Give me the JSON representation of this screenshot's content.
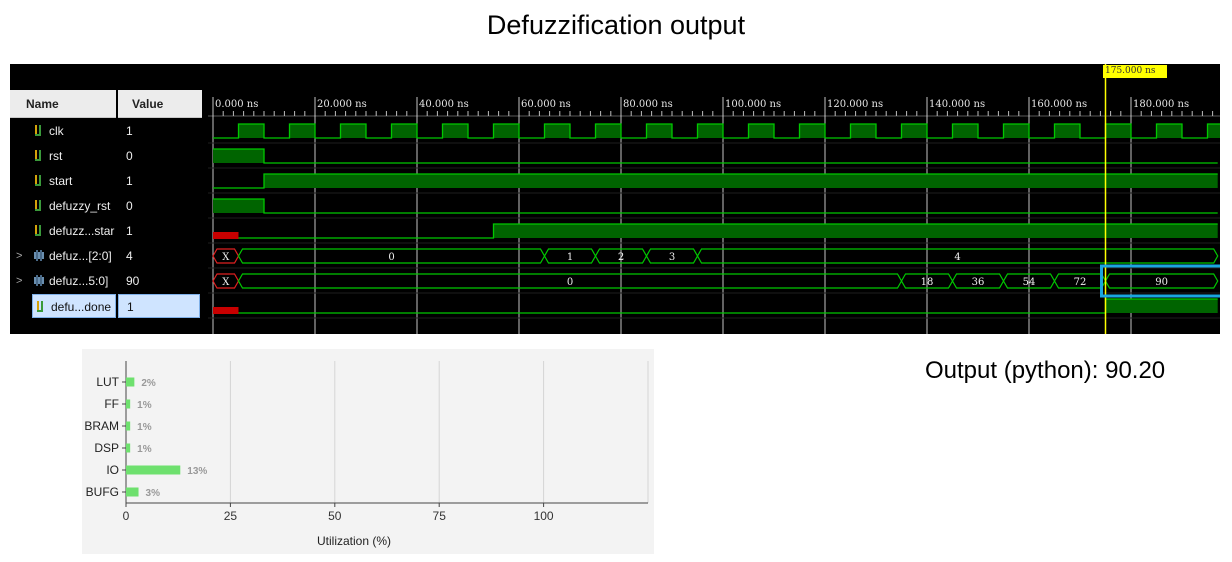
{
  "title": "Defuzzification output",
  "waveform": {
    "headers": {
      "name": "Name",
      "value": "Value"
    },
    "cursor_label": "175.000 ns",
    "time_ticks": [
      "0.000 ns",
      "20.000 ns",
      "40.000 ns",
      "60.000 ns",
      "80.000 ns",
      "100.000 ns",
      "120.000 ns",
      "140.000 ns",
      "160.000 ns",
      "180.000 ns"
    ],
    "signals": [
      {
        "name": "clk",
        "value": "1",
        "kind": "bit",
        "expandable": false
      },
      {
        "name": "rst",
        "value": "0",
        "kind": "bit",
        "expandable": false
      },
      {
        "name": "start",
        "value": "1",
        "kind": "bit",
        "expandable": false
      },
      {
        "name": "defuzzy_rst",
        "value": "0",
        "kind": "bit",
        "expandable": false
      },
      {
        "name": "defuzz...star",
        "value": "1",
        "kind": "bit",
        "expandable": false
      },
      {
        "name": "defuz...[2:0]",
        "value": "4",
        "kind": "bus",
        "expandable": true
      },
      {
        "name": "defuz...5:0]",
        "value": "90",
        "kind": "bus",
        "expandable": true
      },
      {
        "name": "defu...done",
        "value": "1",
        "kind": "bit",
        "expandable": false,
        "selected": true
      }
    ],
    "bus_labels": {
      "counter": [
        "X",
        "0",
        "1",
        "2",
        "3",
        "4"
      ],
      "output": [
        "X",
        "0",
        "18",
        "36",
        "54",
        "72",
        "90"
      ]
    },
    "expander_glyph": ">",
    "highlight_color": "#1aa7e0",
    "wave_color": "#00c800",
    "cursor_color": "#ffff00"
  },
  "output_text": "Output (python): 90.20",
  "chart_data": {
    "type": "bar",
    "orientation": "horizontal",
    "categories": [
      "LUT",
      "FF",
      "BRAM",
      "DSP",
      "IO",
      "BUFG"
    ],
    "values": [
      2,
      1,
      1,
      1,
      13,
      3
    ],
    "value_labels": [
      "2%",
      "1%",
      "1%",
      "1%",
      "13%",
      "3%"
    ],
    "xlabel": "Utilization (%)",
    "xticks": [
      "0",
      "25",
      "50",
      "75",
      "100"
    ],
    "xlim": [
      0,
      125
    ],
    "bar_color": "#6ee06e",
    "grid": true
  }
}
